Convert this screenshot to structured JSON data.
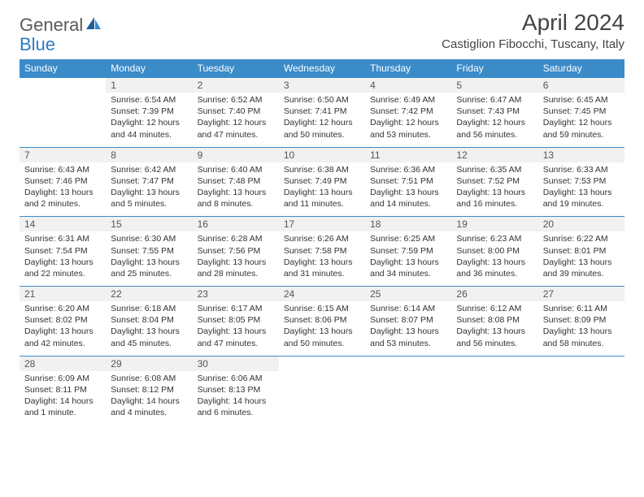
{
  "logo": {
    "text1": "General",
    "text2": "Blue"
  },
  "title": "April 2024",
  "location": "Castiglion Fibocchi, Tuscany, Italy",
  "colors": {
    "header_bg": "#3b8bc9",
    "header_text": "#ffffff",
    "daynum_bg": "#f1f1f1",
    "row_border": "#3b8bc9",
    "body_text": "#333333"
  },
  "weekdays": [
    "Sunday",
    "Monday",
    "Tuesday",
    "Wednesday",
    "Thursday",
    "Friday",
    "Saturday"
  ],
  "weeks": [
    {
      "nums": [
        "",
        "1",
        "2",
        "3",
        "4",
        "5",
        "6"
      ],
      "cells": [
        null,
        {
          "sunrise": "Sunrise: 6:54 AM",
          "sunset": "Sunset: 7:39 PM",
          "day1": "Daylight: 12 hours",
          "day2": "and 44 minutes."
        },
        {
          "sunrise": "Sunrise: 6:52 AM",
          "sunset": "Sunset: 7:40 PM",
          "day1": "Daylight: 12 hours",
          "day2": "and 47 minutes."
        },
        {
          "sunrise": "Sunrise: 6:50 AM",
          "sunset": "Sunset: 7:41 PM",
          "day1": "Daylight: 12 hours",
          "day2": "and 50 minutes."
        },
        {
          "sunrise": "Sunrise: 6:49 AM",
          "sunset": "Sunset: 7:42 PM",
          "day1": "Daylight: 12 hours",
          "day2": "and 53 minutes."
        },
        {
          "sunrise": "Sunrise: 6:47 AM",
          "sunset": "Sunset: 7:43 PM",
          "day1": "Daylight: 12 hours",
          "day2": "and 56 minutes."
        },
        {
          "sunrise": "Sunrise: 6:45 AM",
          "sunset": "Sunset: 7:45 PM",
          "day1": "Daylight: 12 hours",
          "day2": "and 59 minutes."
        }
      ]
    },
    {
      "nums": [
        "7",
        "8",
        "9",
        "10",
        "11",
        "12",
        "13"
      ],
      "cells": [
        {
          "sunrise": "Sunrise: 6:43 AM",
          "sunset": "Sunset: 7:46 PM",
          "day1": "Daylight: 13 hours",
          "day2": "and 2 minutes."
        },
        {
          "sunrise": "Sunrise: 6:42 AM",
          "sunset": "Sunset: 7:47 PM",
          "day1": "Daylight: 13 hours",
          "day2": "and 5 minutes."
        },
        {
          "sunrise": "Sunrise: 6:40 AM",
          "sunset": "Sunset: 7:48 PM",
          "day1": "Daylight: 13 hours",
          "day2": "and 8 minutes."
        },
        {
          "sunrise": "Sunrise: 6:38 AM",
          "sunset": "Sunset: 7:49 PM",
          "day1": "Daylight: 13 hours",
          "day2": "and 11 minutes."
        },
        {
          "sunrise": "Sunrise: 6:36 AM",
          "sunset": "Sunset: 7:51 PM",
          "day1": "Daylight: 13 hours",
          "day2": "and 14 minutes."
        },
        {
          "sunrise": "Sunrise: 6:35 AM",
          "sunset": "Sunset: 7:52 PM",
          "day1": "Daylight: 13 hours",
          "day2": "and 16 minutes."
        },
        {
          "sunrise": "Sunrise: 6:33 AM",
          "sunset": "Sunset: 7:53 PM",
          "day1": "Daylight: 13 hours",
          "day2": "and 19 minutes."
        }
      ]
    },
    {
      "nums": [
        "14",
        "15",
        "16",
        "17",
        "18",
        "19",
        "20"
      ],
      "cells": [
        {
          "sunrise": "Sunrise: 6:31 AM",
          "sunset": "Sunset: 7:54 PM",
          "day1": "Daylight: 13 hours",
          "day2": "and 22 minutes."
        },
        {
          "sunrise": "Sunrise: 6:30 AM",
          "sunset": "Sunset: 7:55 PM",
          "day1": "Daylight: 13 hours",
          "day2": "and 25 minutes."
        },
        {
          "sunrise": "Sunrise: 6:28 AM",
          "sunset": "Sunset: 7:56 PM",
          "day1": "Daylight: 13 hours",
          "day2": "and 28 minutes."
        },
        {
          "sunrise": "Sunrise: 6:26 AM",
          "sunset": "Sunset: 7:58 PM",
          "day1": "Daylight: 13 hours",
          "day2": "and 31 minutes."
        },
        {
          "sunrise": "Sunrise: 6:25 AM",
          "sunset": "Sunset: 7:59 PM",
          "day1": "Daylight: 13 hours",
          "day2": "and 34 minutes."
        },
        {
          "sunrise": "Sunrise: 6:23 AM",
          "sunset": "Sunset: 8:00 PM",
          "day1": "Daylight: 13 hours",
          "day2": "and 36 minutes."
        },
        {
          "sunrise": "Sunrise: 6:22 AM",
          "sunset": "Sunset: 8:01 PM",
          "day1": "Daylight: 13 hours",
          "day2": "and 39 minutes."
        }
      ]
    },
    {
      "nums": [
        "21",
        "22",
        "23",
        "24",
        "25",
        "26",
        "27"
      ],
      "cells": [
        {
          "sunrise": "Sunrise: 6:20 AM",
          "sunset": "Sunset: 8:02 PM",
          "day1": "Daylight: 13 hours",
          "day2": "and 42 minutes."
        },
        {
          "sunrise": "Sunrise: 6:18 AM",
          "sunset": "Sunset: 8:04 PM",
          "day1": "Daylight: 13 hours",
          "day2": "and 45 minutes."
        },
        {
          "sunrise": "Sunrise: 6:17 AM",
          "sunset": "Sunset: 8:05 PM",
          "day1": "Daylight: 13 hours",
          "day2": "and 47 minutes."
        },
        {
          "sunrise": "Sunrise: 6:15 AM",
          "sunset": "Sunset: 8:06 PM",
          "day1": "Daylight: 13 hours",
          "day2": "and 50 minutes."
        },
        {
          "sunrise": "Sunrise: 6:14 AM",
          "sunset": "Sunset: 8:07 PM",
          "day1": "Daylight: 13 hours",
          "day2": "and 53 minutes."
        },
        {
          "sunrise": "Sunrise: 6:12 AM",
          "sunset": "Sunset: 8:08 PM",
          "day1": "Daylight: 13 hours",
          "day2": "and 56 minutes."
        },
        {
          "sunrise": "Sunrise: 6:11 AM",
          "sunset": "Sunset: 8:09 PM",
          "day1": "Daylight: 13 hours",
          "day2": "and 58 minutes."
        }
      ]
    },
    {
      "nums": [
        "28",
        "29",
        "30",
        "",
        "",
        "",
        ""
      ],
      "cells": [
        {
          "sunrise": "Sunrise: 6:09 AM",
          "sunset": "Sunset: 8:11 PM",
          "day1": "Daylight: 14 hours",
          "day2": "and 1 minute."
        },
        {
          "sunrise": "Sunrise: 6:08 AM",
          "sunset": "Sunset: 8:12 PM",
          "day1": "Daylight: 14 hours",
          "day2": "and 4 minutes."
        },
        {
          "sunrise": "Sunrise: 6:06 AM",
          "sunset": "Sunset: 8:13 PM",
          "day1": "Daylight: 14 hours",
          "day2": "and 6 minutes."
        },
        null,
        null,
        null,
        null
      ]
    }
  ]
}
